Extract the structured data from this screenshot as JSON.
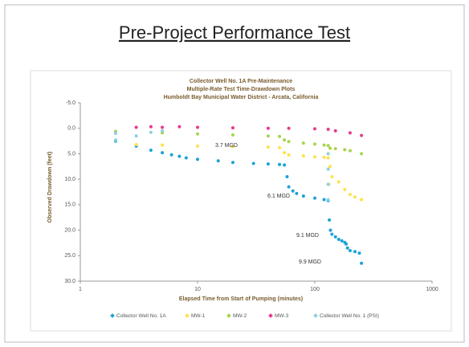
{
  "slide": {
    "title": "Pre-Project Performance Test"
  },
  "chart_data": {
    "type": "scatter",
    "title_lines": [
      "Collector Well No. 1A Pre-Maintenance",
      "Multiple-Rate Test Time-Drawdown Plots",
      "Humboldt Bay Municipal Water District - Arcata, California"
    ],
    "xlabel": "Elapsed Time from Start of Pumping (minutes)",
    "ylabel": "Observed Drawdown (feet)",
    "xscale": "log",
    "xlim": [
      1,
      1000
    ],
    "xticks": [
      1,
      10,
      100,
      1000
    ],
    "ylim": [
      -5,
      30
    ],
    "yinverted": true,
    "yticks": [
      {
        "value": -5,
        "label": "-5.0"
      },
      {
        "value": 0,
        "label": "0.0"
      },
      {
        "value": 5,
        "label": "5.0"
      },
      {
        "value": 10,
        "label": "10.0"
      },
      {
        "value": 15,
        "label": "15.0"
      },
      {
        "value": 20,
        "label": "20.0"
      },
      {
        "value": 25,
        "label": "25.0"
      },
      {
        "value": 30,
        "label": "30.0"
      }
    ],
    "grid": false,
    "legend": "bottom",
    "annotations": [
      "3.7 MGD",
      "6.1 MGD",
      "9.1 MGD",
      "9.9 MGD"
    ],
    "series": [
      {
        "name": "Collector Well No. 1A",
        "color": "#1ba3d6",
        "x": [
          2,
          3,
          4,
          5,
          6,
          7,
          8,
          10,
          15,
          20,
          30,
          40,
          50,
          55,
          58,
          60,
          65,
          70,
          80,
          100,
          120,
          130,
          133,
          136,
          140,
          150,
          160,
          170,
          180,
          185,
          190,
          200,
          220,
          240,
          250
        ],
        "values": [
          2.5,
          3.5,
          4.3,
          4.8,
          5.2,
          5.5,
          5.8,
          6.1,
          6.4,
          6.7,
          6.9,
          7.0,
          7.1,
          7.2,
          9.5,
          11.5,
          12.3,
          12.8,
          13.3,
          13.7,
          14,
          14.2,
          18,
          20,
          20.8,
          21.3,
          21.8,
          22.1,
          22.4,
          22.7,
          23.5,
          24,
          24.2,
          24.5,
          26.5
        ]
      },
      {
        "name": "MW-1",
        "color": "#ffe14a",
        "x": [
          3,
          5,
          10,
          20,
          40,
          50,
          55,
          60,
          80,
          100,
          120,
          130,
          132,
          135,
          140,
          160,
          180,
          200,
          220,
          250
        ],
        "values": [
          3.2,
          3.3,
          3.5,
          3.6,
          3.7,
          3.8,
          4.8,
          5.2,
          5.4,
          5.6,
          5.7,
          5.8,
          11,
          7.5,
          9.5,
          10.5,
          12,
          13,
          13.5,
          14
        ]
      },
      {
        "name": "MW-2",
        "color": "#a8d44e",
        "x": [
          2,
          5,
          10,
          20,
          40,
          50,
          55,
          60,
          80,
          100,
          120,
          130,
          135,
          150,
          180,
          200,
          250
        ],
        "values": [
          0.6,
          0.9,
          1.1,
          1.3,
          1.5,
          1.6,
          2.3,
          2.6,
          2.9,
          3.1,
          3.3,
          3.4,
          3.9,
          4.0,
          4.2,
          4.4,
          5.0
        ]
      },
      {
        "name": "MW-3",
        "color": "#e8398a",
        "x": [
          3,
          4,
          5,
          7,
          10,
          20,
          40,
          60,
          100,
          130,
          150,
          200,
          250
        ],
        "values": [
          -0.2,
          -0.3,
          -0.2,
          -0.3,
          -0.2,
          -0.1,
          0,
          0,
          0.1,
          0.2,
          0.5,
          0.9,
          1.4
        ]
      },
      {
        "name": "Collector Well No. 1 (PSI)",
        "color": "#8ecfe0",
        "x": [
          2,
          2,
          3,
          4,
          5,
          130,
          130,
          130,
          130
        ],
        "values": [
          1,
          2.3,
          1.5,
          0.8,
          0.5,
          5,
          8,
          11,
          14
        ]
      }
    ]
  }
}
